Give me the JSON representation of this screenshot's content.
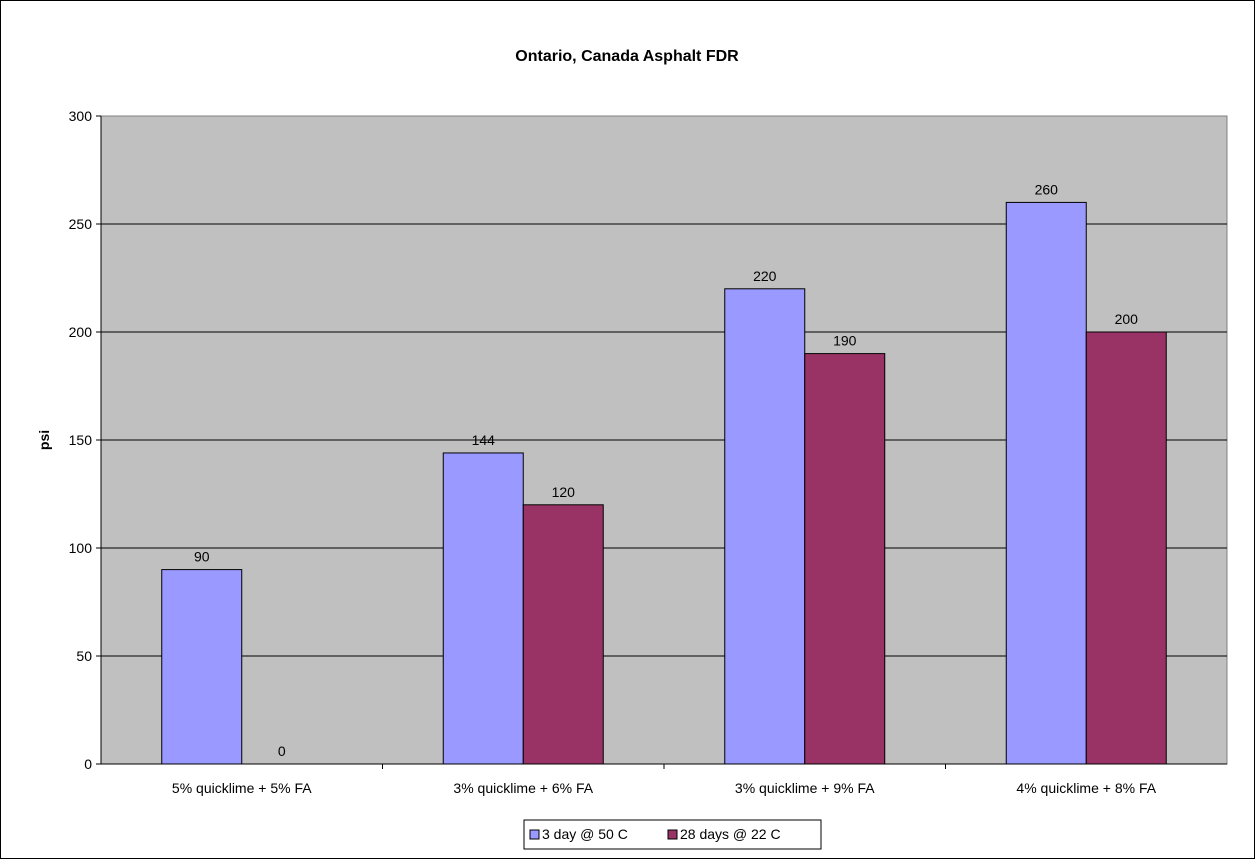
{
  "chart_data": {
    "type": "bar",
    "title": "Ontario, Canada Asphalt FDR",
    "xlabel": "",
    "ylabel": "psi",
    "ylim": [
      0,
      300
    ],
    "yticks": [
      0,
      50,
      100,
      150,
      200,
      250,
      300
    ],
    "categories": [
      "5% quicklime + 5% FA",
      "3% quicklime + 6% FA",
      "3% quicklime + 9% FA",
      "4% quicklime + 8% FA"
    ],
    "series": [
      {
        "name": "3 day @ 50 C",
        "values": [
          90,
          144,
          220,
          260
        ],
        "color": "#9999ff"
      },
      {
        "name": "28 days @ 22 C",
        "values": [
          0,
          120,
          190,
          200
        ],
        "color": "#993366"
      }
    ],
    "grid": true,
    "legend": "bottom",
    "plot_background": "#c0c0c0"
  }
}
